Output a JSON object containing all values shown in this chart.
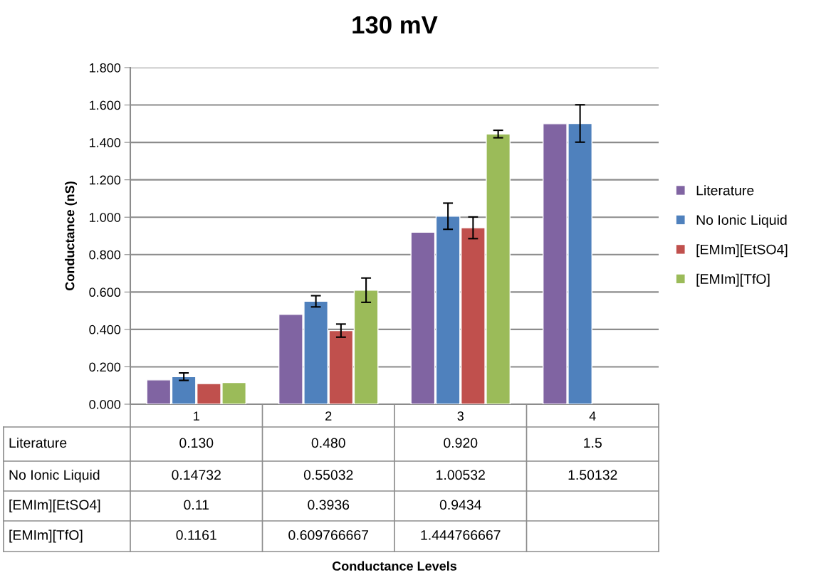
{
  "chart_data": {
    "type": "bar",
    "title": "130 mV",
    "annotations": [
      "Conductance Levels"
    ],
    "ylabel": "Conductance (nS)",
    "categories": [
      "1",
      "2",
      "3",
      "4"
    ],
    "series": [
      {
        "name": "Literature",
        "color": "#8064a2",
        "values": [
          0.13,
          0.48,
          0.92,
          1.5
        ],
        "value_labels": [
          "0.130",
          "0.480",
          "0.920",
          "1.5"
        ]
      },
      {
        "name": "No Ionic Liquid",
        "color": "#4f81bd",
        "values": [
          0.14732,
          0.55032,
          1.00532,
          1.50132
        ],
        "value_labels": [
          "0.14732",
          "0.55032",
          "1.00532",
          "1.50132"
        ],
        "errors": [
          0.02,
          0.03,
          0.07,
          0.1
        ]
      },
      {
        "name": "[EMIm][EtSO4]",
        "color": "#c0504d",
        "values": [
          0.11,
          0.3936,
          0.9434,
          null
        ],
        "value_labels": [
          "0.11",
          "0.3936",
          "0.9434",
          null
        ],
        "errors": [
          null,
          0.035,
          0.058,
          null
        ]
      },
      {
        "name": "[EMIm][TfO]",
        "color": "#9bbb59",
        "values": [
          0.1161,
          0.609766667,
          1.444766667,
          null
        ],
        "value_labels": [
          "0.1161",
          "0.609766667",
          "1.444766667",
          null
        ],
        "errors": [
          null,
          0.065,
          0.02,
          null
        ]
      }
    ],
    "ylim": [
      0,
      1.8
    ],
    "yticks": [
      {
        "value": 0,
        "label": "0.000"
      },
      {
        "value": 0.2,
        "label": "0.200"
      },
      {
        "value": 0.4,
        "label": "0.400"
      },
      {
        "value": 0.6,
        "label": "0.600"
      },
      {
        "value": 0.8,
        "label": "0.800"
      },
      {
        "value": 1.0,
        "label": "1.000"
      },
      {
        "value": 1.2,
        "label": "1.200"
      },
      {
        "value": 1.4,
        "label": "1.400"
      },
      {
        "value": 1.6,
        "label": "1.600"
      },
      {
        "value": 1.8,
        "label": "1.800"
      }
    ],
    "grid": "y",
    "legend": "right"
  }
}
